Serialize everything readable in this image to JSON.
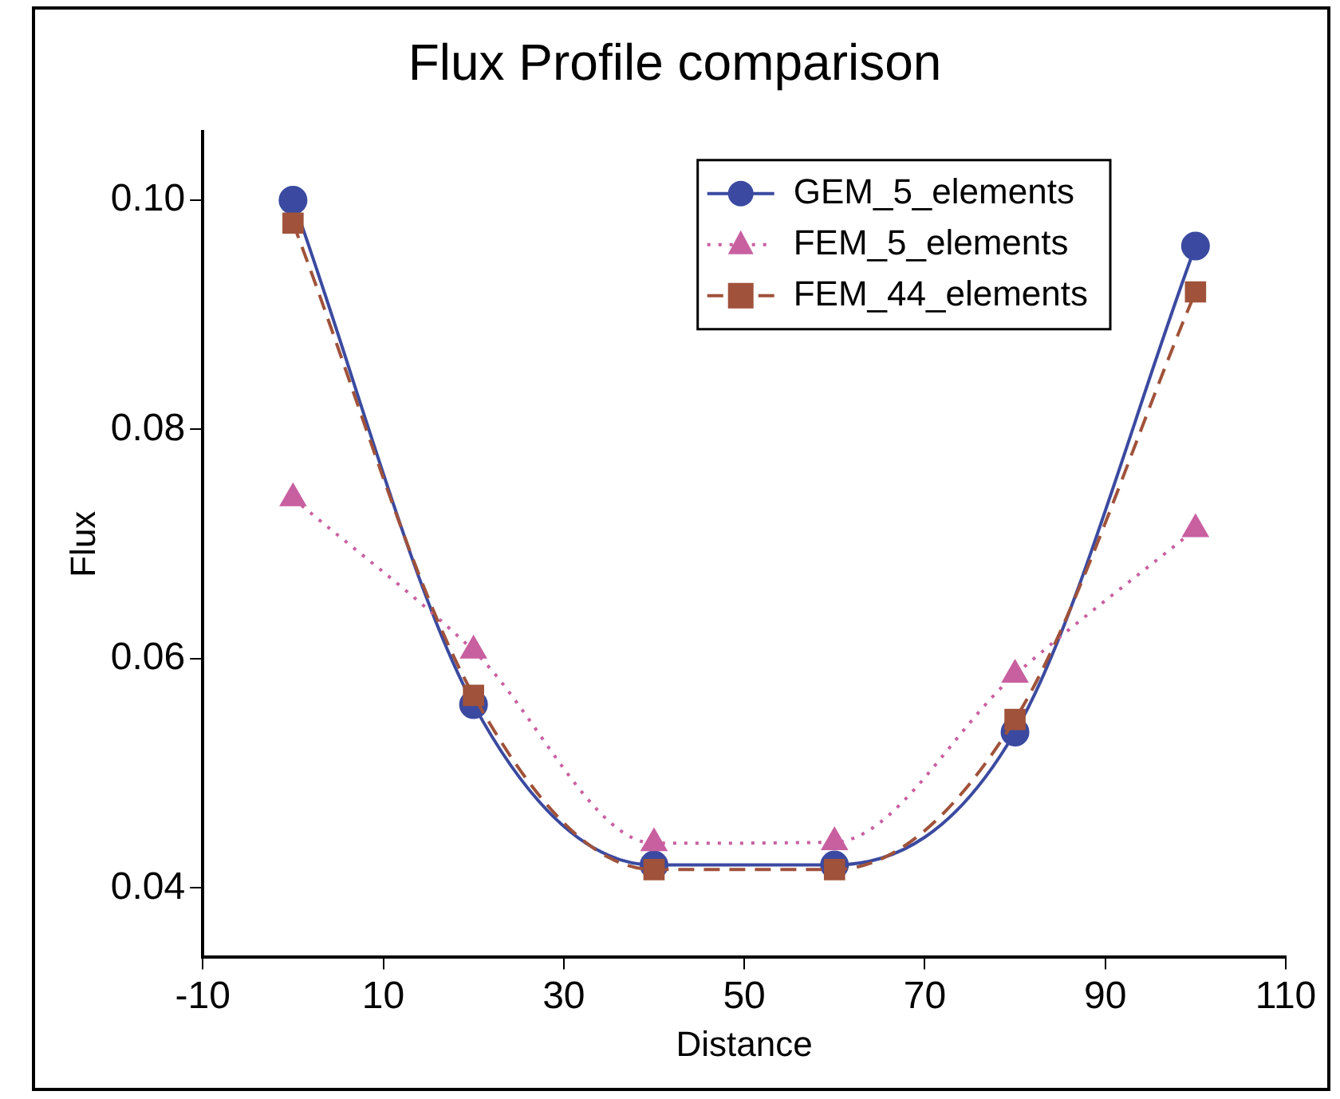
{
  "chart_data": {
    "type": "line",
    "title": "Flux Profile comparison",
    "xlabel": "Distance",
    "ylabel": "Flux",
    "x": [
      0,
      20,
      40,
      60,
      80,
      100
    ],
    "series": [
      {
        "name": "GEM_5_elements",
        "color": "#3b4aa0",
        "values": [
          0.1,
          0.056,
          0.042,
          0.042,
          0.0536,
          0.096
        ],
        "marker": "circle",
        "line_style": "solid"
      },
      {
        "name": "FEM_5_elements",
        "color": "#c860a0",
        "values": [
          0.074,
          0.0607,
          0.0439,
          0.044,
          0.0586,
          0.0713
        ],
        "marker": "triangle",
        "line_style": "dotted"
      },
      {
        "name": "FEM_44_elements",
        "color": "#a0523a",
        "values": [
          0.098,
          0.0568,
          0.0416,
          0.0416,
          0.0547,
          0.092
        ],
        "marker": "square",
        "line_style": "dashed"
      }
    ],
    "xlim": [
      -10,
      110
    ],
    "xticks": [
      -10,
      10,
      30,
      50,
      70,
      90,
      110
    ],
    "ylim": [
      0.034,
      0.106
    ],
    "yticks": [
      {
        "value": 0.04,
        "label": "0.04"
      },
      {
        "value": 0.06,
        "label": "0.06"
      },
      {
        "value": 0.08,
        "label": "0.08"
      },
      {
        "value": 0.1,
        "label": "0.10"
      }
    ],
    "grid": false,
    "legend": "top right"
  }
}
